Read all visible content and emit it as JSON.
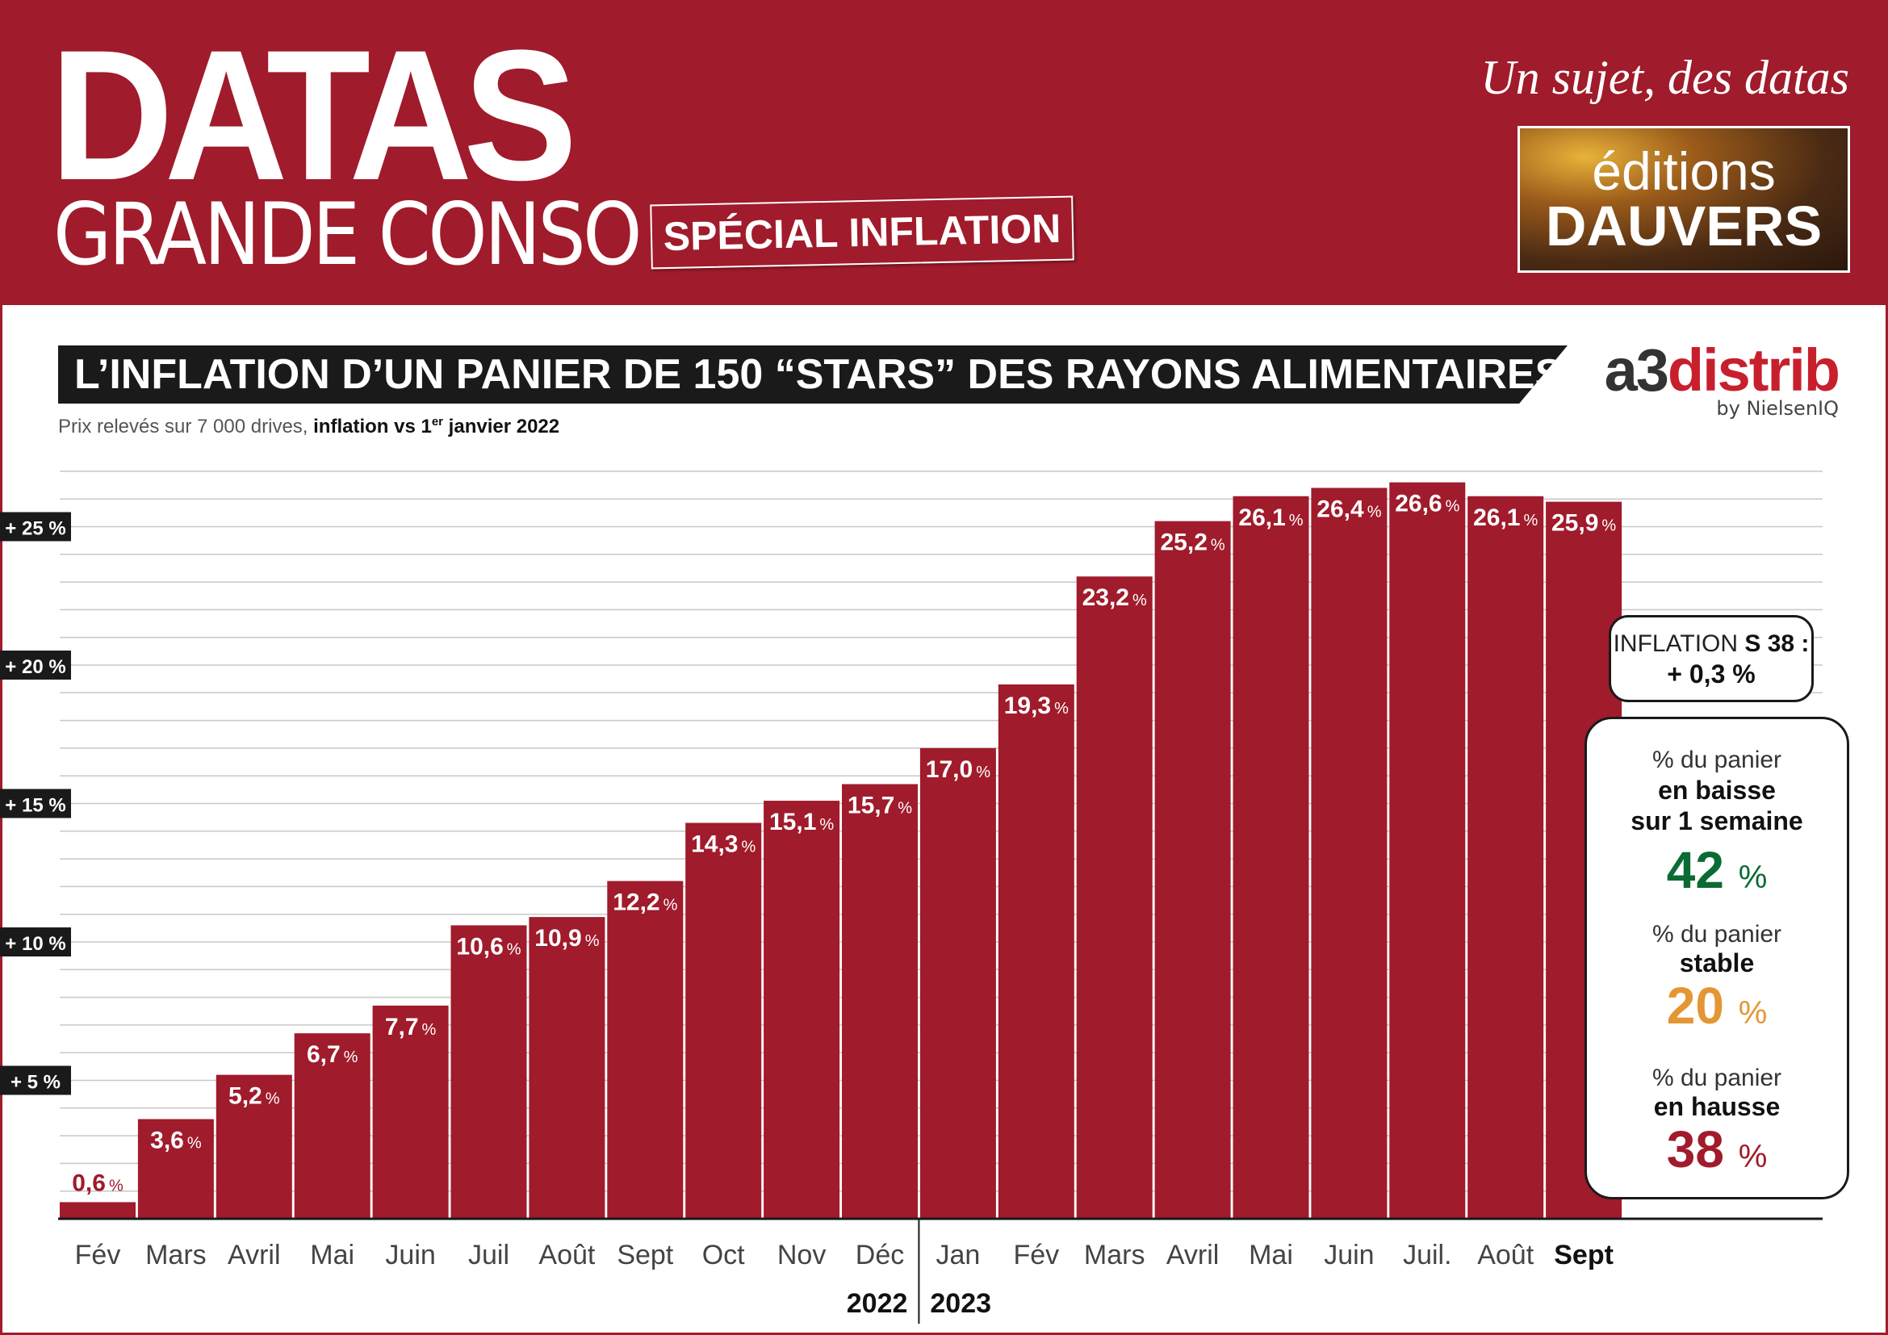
{
  "header": {
    "brand_main": "DATAS",
    "brand_sub": "GRANDE CONSO",
    "special_label": "SPÉCIAL INFLATION",
    "tagline": "Un sujet, des datas",
    "publisher_line1": "éditions",
    "publisher_line2": "DAUVERS"
  },
  "source": {
    "name_part1": "a3",
    "name_part2": "distrib",
    "byline": "by NielsenIQ"
  },
  "subtitle": {
    "text": "Prix relevés sur 7 000 drives, ",
    "bold_text": "inflation vs 1",
    "bold_sup": "er",
    "bold_text_end": " janvier 2022"
  },
  "chart_data": {
    "type": "bar",
    "title": "L’INFLATION D’UN PANIER DE 150 “STARS” DES RAYONS ALIMENTAIRES",
    "ylim": [
      0,
      27
    ],
    "ytick_labels": [
      "+ 5 %",
      "+ 10 %",
      "+ 15 %",
      "+ 20 %",
      "+ 25 %"
    ],
    "categories": [
      "Fév",
      "Mars",
      "Avril",
      "Mai",
      "Juin",
      "Juil",
      "Août",
      "Sept",
      "Oct",
      "Nov",
      "Déc",
      "Jan",
      "Fév",
      "Mars",
      "Avril",
      "Mai",
      "Juin",
      "Juil.",
      "Août",
      "Sept"
    ],
    "values": [
      0.6,
      3.6,
      5.2,
      6.7,
      7.7,
      10.6,
      10.9,
      12.2,
      14.3,
      15.1,
      15.7,
      17.0,
      19.3,
      23.2,
      25.2,
      26.1,
      26.4,
      26.6,
      26.1,
      25.9
    ],
    "value_labels": [
      "0,6",
      "3,6",
      "5,2",
      "6,7",
      "7,7",
      "10,6",
      "10,9",
      "12,2",
      "14,3",
      "15,1",
      "15,7",
      "17,0",
      "19,3",
      "23,2",
      "25,2",
      "26,1",
      "26,4",
      "26,6",
      "26,1",
      "25,9"
    ],
    "value_unit": "%",
    "years": [
      {
        "label": "2022",
        "from": 0,
        "to": 10
      },
      {
        "label": "2023",
        "from": 11,
        "to": 19
      }
    ],
    "grid": true,
    "legend": "none"
  },
  "weekly": {
    "label": "INFLATION ",
    "label_bold": "S 38 :",
    "value": "+ 0,3 %"
  },
  "basket": [
    {
      "line1": "% du panier",
      "line2": "en baisse",
      "line3": "sur 1 semaine",
      "value": "42",
      "unit": "%",
      "color": "#0b6b35"
    },
    {
      "line1": "% du panier",
      "line2": "stable",
      "line3": "",
      "value": "20",
      "unit": "%",
      "color": "#e49634"
    },
    {
      "line1": "% du panier",
      "line2": "en hausse",
      "line3": "",
      "value": "38",
      "unit": "%",
      "color": "#a01b2b"
    }
  ],
  "colors": {
    "brand": "#a01b2b",
    "bar": "#a01b2b",
    "grid": "#c8c8c8",
    "dark": "#1a1a1a"
  }
}
